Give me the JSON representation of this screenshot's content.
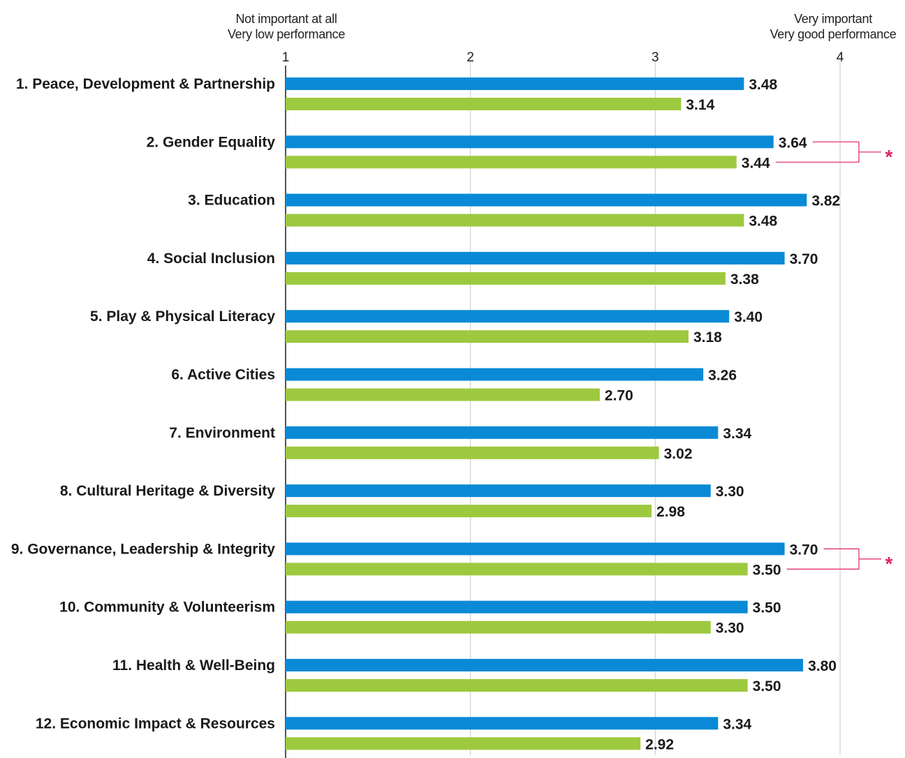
{
  "header": {
    "left_line1": "Not important at all",
    "left_line2": "Very low performance",
    "right_line1": "Very important",
    "right_line2": "Very good performance"
  },
  "chart_data": {
    "type": "bar",
    "orientation": "horizontal",
    "categories": [
      "1. Peace, Development & Partnership",
      "2. Gender Equality",
      "3. Education",
      "4. Social Inclusion",
      "5. Play & Physical Literacy",
      "6. Active Cities",
      "7. Environment",
      "8. Cultural Heritage & Diversity",
      "9. Governance, Leadership & Integrity",
      "10. Community & Volunteerism",
      "11. Health & Well-Being",
      "12. Economic Impact & Resources"
    ],
    "series": [
      {
        "color": "#0a8ad6",
        "values": [
          3.48,
          3.64,
          3.82,
          3.7,
          3.4,
          3.26,
          3.34,
          3.3,
          3.7,
          3.5,
          3.8,
          3.34
        ],
        "labels": [
          "3.48",
          "3.64",
          "3.82",
          "3.70",
          "3.40",
          "3.26",
          "3.34",
          "3.30",
          "3.70",
          "3.50",
          "3.80",
          "3.34"
        ]
      },
      {
        "color": "#9dc93f",
        "values": [
          3.14,
          3.44,
          3.48,
          3.38,
          3.18,
          2.7,
          3.02,
          2.98,
          3.5,
          3.3,
          3.5,
          2.92
        ],
        "labels": [
          "3.14",
          "3.44",
          "3.48",
          "3.38",
          "3.18",
          "2.70",
          "3.02",
          "2.98",
          "3.50",
          "3.30",
          "3.50",
          "2.92"
        ]
      }
    ],
    "xlim": [
      1,
      4
    ],
    "xticks": [
      "1",
      "2",
      "3",
      "4"
    ],
    "significance": [
      {
        "category_index": 1,
        "marker": "*"
      },
      {
        "category_index": 8,
        "marker": "*"
      }
    ],
    "significance_color": "#e0245e",
    "grid": true,
    "legend": "none"
  }
}
